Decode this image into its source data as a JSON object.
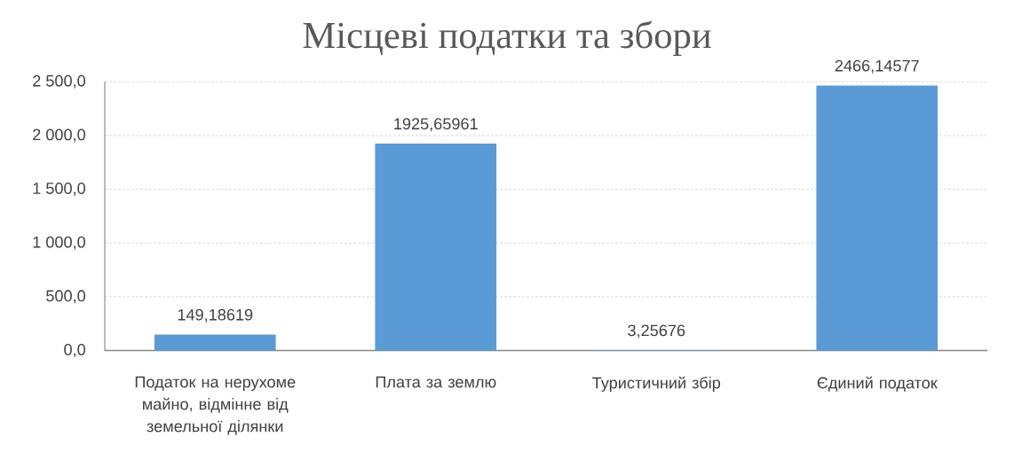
{
  "chart_data": {
    "type": "bar",
    "title": "Місцеві податки та збори",
    "categories": [
      "Податок на нерухоме майно, відмінне від земельної ділянки",
      "Плата за землю",
      "Туристичний збір",
      "Єдиний податок"
    ],
    "values": [
      149.18619,
      1925.65961,
      3.25676,
      2466.14577
    ],
    "value_labels": [
      "149,18619",
      "1925,65961",
      "3,25676",
      "2466,14577"
    ],
    "color": "#5b9bd5",
    "ylim": [
      0,
      2500
    ],
    "yticks": [
      {
        "value": 0,
        "label": "0,0"
      },
      {
        "value": 500,
        "label": "500,0"
      },
      {
        "value": 1000,
        "label": "1 000,0"
      },
      {
        "value": 1500,
        "label": "1 500,0"
      },
      {
        "value": 2000,
        "label": "2 000,0"
      },
      {
        "value": 2500,
        "label": "2 500,0"
      }
    ],
    "grid": "y"
  }
}
